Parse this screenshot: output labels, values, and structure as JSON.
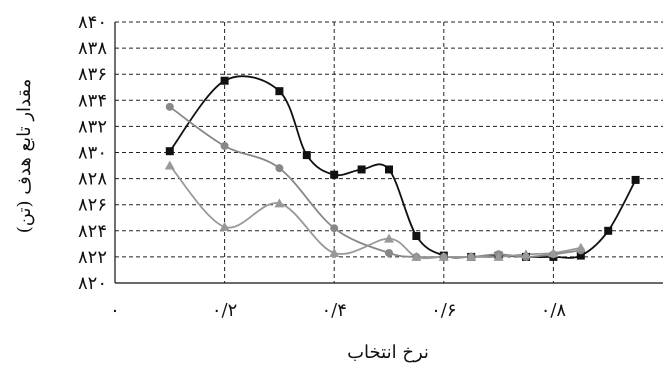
{
  "chart_data": {
    "type": "line",
    "title": "",
    "xlabel": "نرخ انتخاب",
    "ylabel": "مقدار تابع هدف (تن)",
    "xlim": [
      0,
      1.0
    ],
    "ylim": [
      820,
      840
    ],
    "x_ticks": [
      {
        "value": 0,
        "label": "۰"
      },
      {
        "value": 0.2,
        "label": "۰/۲"
      },
      {
        "value": 0.4,
        "label": "۰/۴"
      },
      {
        "value": 0.6,
        "label": "۰/۶"
      },
      {
        "value": 0.8,
        "label": "۰/۸"
      }
    ],
    "y_ticks": [
      {
        "value": 820,
        "label": "۸۲۰"
      },
      {
        "value": 822,
        "label": "۸۲۲"
      },
      {
        "value": 824,
        "label": "۸۲۴"
      },
      {
        "value": 826,
        "label": "۸۲۶"
      },
      {
        "value": 828,
        "label": "۸۲۸"
      },
      {
        "value": 830,
        "label": "۸۳۰"
      },
      {
        "value": 832,
        "label": "۸۳۲"
      },
      {
        "value": 834,
        "label": "۸۳۴"
      },
      {
        "value": 836,
        "label": "۸۳۶"
      },
      {
        "value": 838,
        "label": "۸۳۸"
      },
      {
        "value": 840,
        "label": "۸۴۰"
      }
    ],
    "grid": true,
    "series": [
      {
        "marker": "square",
        "color": "#111111",
        "x": [
          0.1,
          0.2,
          0.3,
          0.35,
          0.4,
          0.45,
          0.5,
          0.55,
          0.6,
          0.65,
          0.7,
          0.75,
          0.8,
          0.85,
          0.9,
          0.95
        ],
        "y": [
          830.1,
          835.5,
          834.7,
          829.8,
          828.3,
          828.7,
          828.7,
          823.6,
          822.1,
          822.0,
          822.1,
          822.0,
          822.0,
          822.1,
          824.0,
          827.9
        ]
      },
      {
        "marker": "circle",
        "color": "#888888",
        "x": [
          0.1,
          0.2,
          0.3,
          0.4,
          0.5,
          0.55,
          0.6,
          0.65,
          0.7,
          0.75,
          0.8,
          0.85
        ],
        "y": [
          833.5,
          830.5,
          828.8,
          824.2,
          822.3,
          822.0,
          822.0,
          822.0,
          822.2,
          822.0,
          822.2,
          822.5
        ]
      },
      {
        "marker": "triangle",
        "color": "#999999",
        "x": [
          0.1,
          0.2,
          0.3,
          0.4,
          0.5,
          0.55,
          0.6,
          0.65,
          0.7,
          0.75,
          0.8,
          0.85
        ],
        "y": [
          829.0,
          824.3,
          826.1,
          822.3,
          823.4,
          822.0,
          822.0,
          822.0,
          822.0,
          822.2,
          822.3,
          822.7
        ]
      }
    ]
  }
}
